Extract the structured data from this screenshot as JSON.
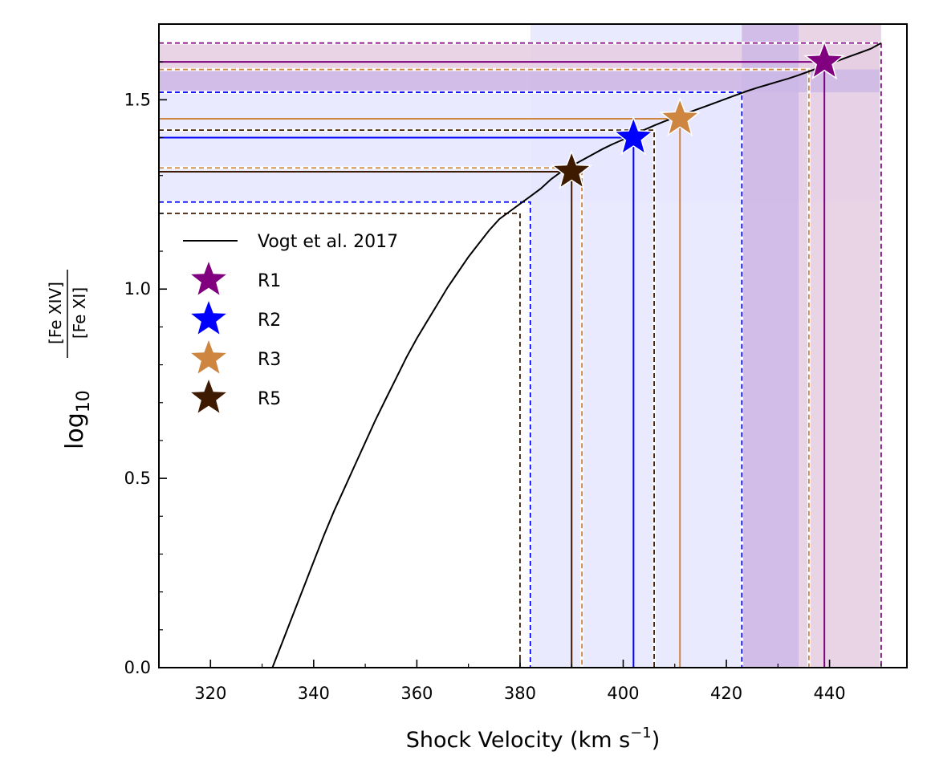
{
  "chart_data": {
    "type": "line",
    "title": "",
    "xlabel": "Shock Velocity (km s",
    "xlabel_superscript": "−1",
    "xlabel_close": ")",
    "ylabel_prefix": "log",
    "ylabel_subscript": "10",
    "ylabel_numerator": "[Fe XIV]",
    "ylabel_denominator": "[Fe XI]",
    "xlim": [
      310,
      455
    ],
    "ylim": [
      0.0,
      1.7
    ],
    "xticks": [
      320,
      340,
      360,
      380,
      400,
      420,
      440
    ],
    "xtick_labels": [
      "320",
      "340",
      "360",
      "380",
      "400",
      "420",
      "440"
    ],
    "yticks": [
      0.0,
      0.5,
      1.0,
      1.5
    ],
    "ytick_labels": [
      "0.0",
      "0.5",
      "1.0",
      "1.5"
    ],
    "model_curve": {
      "name": "Vogt et al. 2017",
      "color": "#000000",
      "x": [
        332,
        334,
        336,
        338,
        340,
        342,
        344,
        346,
        348,
        350,
        352,
        354,
        356,
        358,
        360,
        362,
        364,
        366,
        368,
        370,
        372,
        374,
        376,
        378,
        380,
        382,
        384,
        386,
        388,
        390,
        392,
        394,
        396,
        398,
        400,
        402,
        404,
        406,
        408,
        410,
        412,
        414,
        416,
        418,
        420,
        422,
        424,
        426,
        428,
        430,
        432,
        434,
        436,
        438,
        440,
        442,
        444,
        446,
        448,
        450
      ],
      "y": [
        0.0,
        0.07,
        0.14,
        0.21,
        0.28,
        0.35,
        0.415,
        0.475,
        0.535,
        0.595,
        0.655,
        0.71,
        0.765,
        0.82,
        0.87,
        0.915,
        0.96,
        1.005,
        1.045,
        1.085,
        1.12,
        1.155,
        1.185,
        1.205,
        1.225,
        1.245,
        1.265,
        1.29,
        1.31,
        1.325,
        1.34,
        1.355,
        1.37,
        1.383,
        1.395,
        1.408,
        1.42,
        1.432,
        1.443,
        1.453,
        1.463,
        1.473,
        1.483,
        1.493,
        1.503,
        1.513,
        1.523,
        1.532,
        1.54,
        1.548,
        1.556,
        1.565,
        1.575,
        1.585,
        1.595,
        1.605,
        1.615,
        1.625,
        1.635,
        1.65
      ]
    },
    "regions": [
      {
        "name": "R1",
        "color": "#800080",
        "x": 439,
        "y": 1.6,
        "x_lo": 436,
        "x_hi": 450,
        "y_lo": 1.58,
        "y_hi": 1.65
      },
      {
        "name": "R2",
        "color": "#0000ff",
        "x": 402,
        "y": 1.4,
        "x_lo": 382,
        "x_hi": 423,
        "y_lo": 1.23,
        "y_hi": 1.52
      },
      {
        "name": "R3",
        "color": "#cd853f",
        "x": 411,
        "y": 1.45,
        "x_lo": 392,
        "x_hi": 436,
        "y_lo": 1.32,
        "y_hi": 1.58
      },
      {
        "name": "R5",
        "color": "#3d1a00",
        "x": 390,
        "y": 1.31,
        "x_lo": 380,
        "x_hi": 406,
        "y_lo": 1.2,
        "y_hi": 1.42
      }
    ],
    "bands": [
      {
        "axis": "x",
        "from": 382,
        "to": 423,
        "color": "#e6e6ff"
      },
      {
        "axis": "y",
        "from": 1.23,
        "to": 1.52,
        "color": "#e6e6ff"
      },
      {
        "axis": "x",
        "from": 423,
        "to": 450,
        "color": "#e5cce2"
      },
      {
        "axis": "y",
        "from": 1.52,
        "to": 1.65,
        "color": "#e5cce2"
      },
      {
        "axis": "x",
        "from": 423,
        "to": 434,
        "color": "#cdb8e6"
      },
      {
        "axis": "y",
        "from": 1.52,
        "to": 1.58,
        "color": "#cdb8e6"
      }
    ],
    "legend_position": "upper-left"
  }
}
